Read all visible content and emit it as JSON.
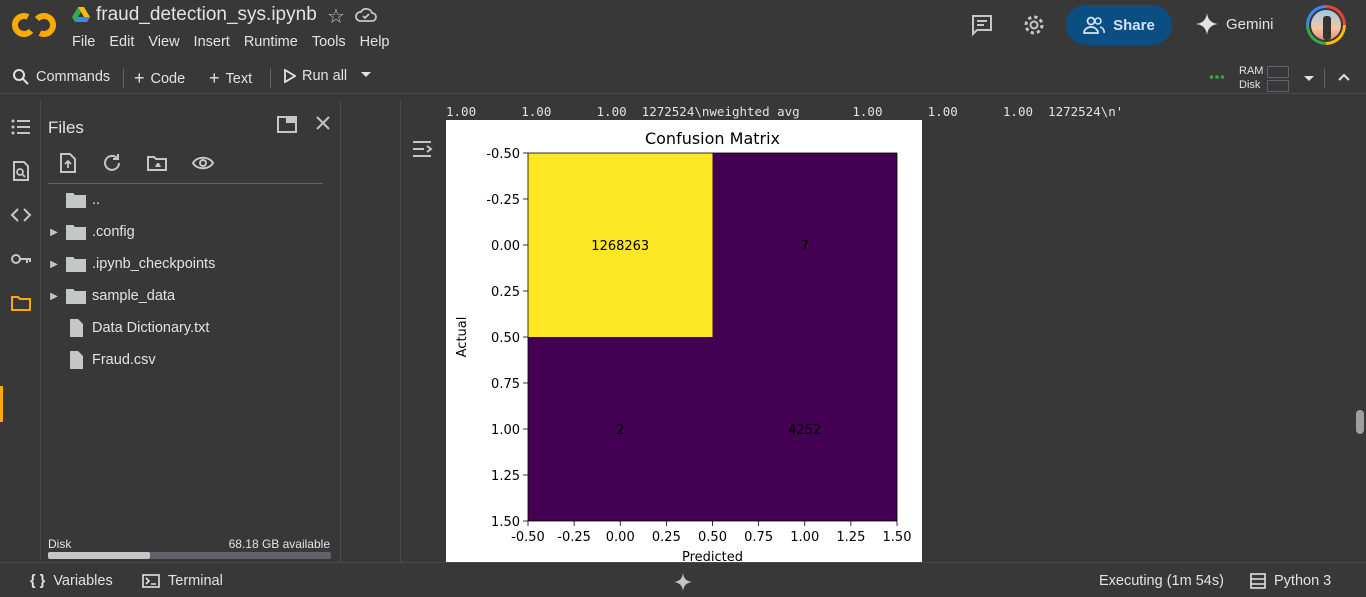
{
  "header": {
    "notebook_title": "fraud_detection_sys.ipynb",
    "menu": [
      "File",
      "Edit",
      "View",
      "Insert",
      "Runtime",
      "Tools",
      "Help"
    ],
    "share_label": "Share",
    "gemini_label": "Gemini"
  },
  "toolbar": {
    "commands_label": "Commands",
    "code_label": "Code",
    "text_label": "Text",
    "run_all_label": "Run all",
    "ram_label": "RAM",
    "disk_label": "Disk"
  },
  "files_panel": {
    "title": "Files",
    "items": [
      {
        "name": "..",
        "type": "folder",
        "expandable": false
      },
      {
        "name": ".config",
        "type": "folder",
        "expandable": true
      },
      {
        "name": ".ipynb_checkpoints",
        "type": "folder",
        "expandable": true
      },
      {
        "name": "sample_data",
        "type": "folder",
        "expandable": true
      },
      {
        "name": "Data Dictionary.txt",
        "type": "file",
        "expandable": false
      },
      {
        "name": "Fraud.csv",
        "type": "file",
        "expandable": false
      }
    ],
    "disk_label": "Disk",
    "disk_available": "68.18 GB available",
    "disk_used_fraction": 0.36
  },
  "output": {
    "text_line": "1.00      1.00      1.00  1272524\\nweighted avg       1.00      1.00      1.00  1272524\\n'"
  },
  "chart_data": {
    "type": "heatmap",
    "title": "Confusion Matrix",
    "xlabel": "Predicted",
    "ylabel": "Actual",
    "xlim": [
      -0.5,
      1.5
    ],
    "ylim": [
      1.5,
      -0.5
    ],
    "xticks": [
      "-0.50",
      "-0.25",
      "0.00",
      "0.25",
      "0.50",
      "0.75",
      "1.00",
      "1.25",
      "1.50"
    ],
    "yticks": [
      "-0.50",
      "-0.25",
      "0.00",
      "0.25",
      "0.50",
      "0.75",
      "1.00",
      "1.25",
      "1.50"
    ],
    "matrix": [
      [
        1268263,
        7
      ],
      [
        2,
        4252
      ]
    ],
    "cell_labels": [
      [
        "1268263",
        "7"
      ],
      [
        "2",
        "4252"
      ]
    ],
    "colors": {
      "high": "#fde725",
      "low": "#440154"
    }
  },
  "statusbar": {
    "variables_label": "Variables",
    "terminal_label": "Terminal",
    "executing_label": "Executing (1m 54s)",
    "kernel_label": "Python 3"
  }
}
